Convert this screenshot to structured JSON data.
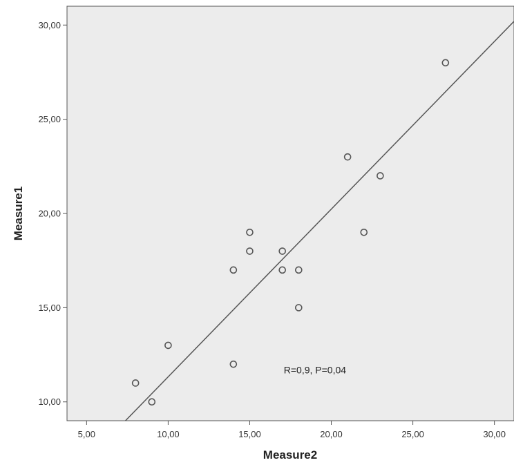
{
  "chart_data": {
    "type": "scatter",
    "xlabel": "Measure2",
    "ylabel": "Measure1",
    "xlim": [
      3.8,
      31.2
    ],
    "ylim": [
      9.0,
      31.0
    ],
    "x_ticks": [
      5,
      10,
      15,
      20,
      25,
      30
    ],
    "x_tick_labels": [
      "5,00",
      "10,00",
      "15,00",
      "20,00",
      "25,00",
      "30,00"
    ],
    "y_ticks": [
      10,
      15,
      20,
      25,
      30
    ],
    "y_tick_labels": [
      "10,00",
      "15,00",
      "20,00",
      "25,00",
      "30,00"
    ],
    "points": [
      {
        "x": 8,
        "y": 11
      },
      {
        "x": 9,
        "y": 10
      },
      {
        "x": 10,
        "y": 13
      },
      {
        "x": 14,
        "y": 17
      },
      {
        "x": 14,
        "y": 12
      },
      {
        "x": 15,
        "y": 19
      },
      {
        "x": 15,
        "y": 18
      },
      {
        "x": 17,
        "y": 18
      },
      {
        "x": 17,
        "y": 17
      },
      {
        "x": 18,
        "y": 17
      },
      {
        "x": 18,
        "y": 15
      },
      {
        "x": 21,
        "y": 23
      },
      {
        "x": 22,
        "y": 19
      },
      {
        "x": 23,
        "y": 22
      },
      {
        "x": 27,
        "y": 28
      }
    ],
    "fit_line": {
      "intercept": 2.43,
      "slope": 0.89
    },
    "annotation": {
      "text": "R=0,9, P=0,04",
      "x": 19.0,
      "y": 11.7
    },
    "grid": false,
    "plot_background": "#ececec",
    "marker_color": "#555555",
    "line_color": "#555555"
  }
}
